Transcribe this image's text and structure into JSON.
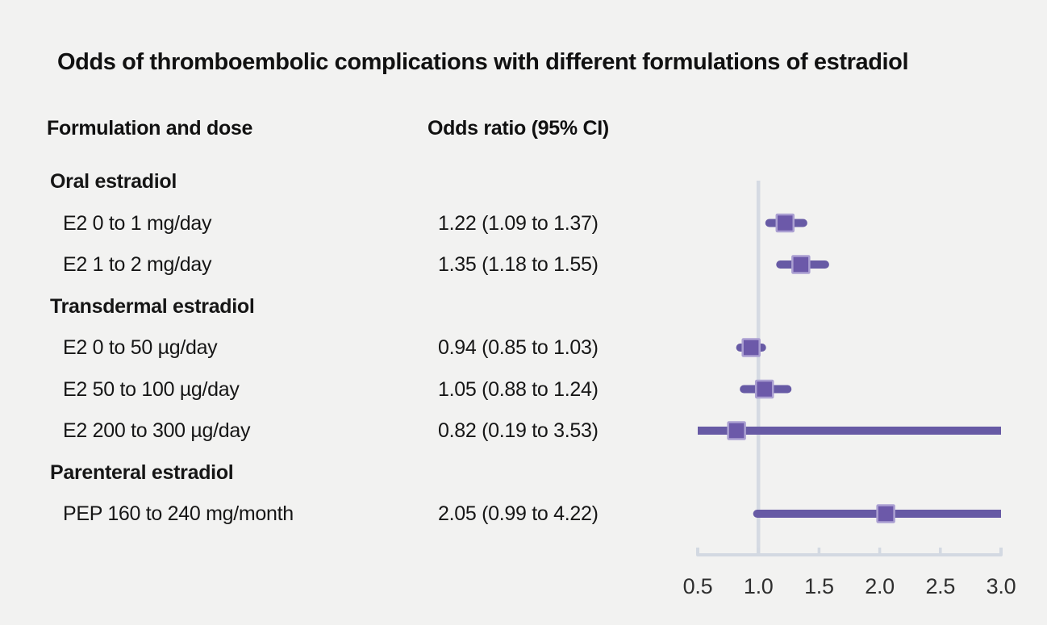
{
  "title": "Odds of thromboembolic complications with different formulations of estradiol",
  "columns": {
    "formulation": "Formulation and dose",
    "odds": "Odds ratio (95% CI)"
  },
  "chart_data": {
    "type": "forest",
    "title": "Odds of thromboembolic complications with different formulations of estradiol",
    "x_axis": {
      "label": "",
      "scale": "linear",
      "xlim": [
        0.5,
        3.0
      ],
      "tick_values": [
        0.5,
        1.0,
        1.5,
        2.0,
        2.5,
        3.0
      ],
      "tick_labels": [
        "0.5",
        "1.0",
        "1.5",
        "2.0",
        "2.5",
        "3.0"
      ],
      "reference_value": 1.0
    },
    "rows": [
      {
        "type": "group",
        "label": "Oral estradiol"
      },
      {
        "type": "item",
        "label": "E2 0 to 1 mg/day",
        "or_text": "1.22 (1.09 to 1.37)",
        "estimate": 1.22,
        "ci_low": 1.09,
        "ci_high": 1.37
      },
      {
        "type": "item",
        "label": "E2 1 to 2 mg/day",
        "or_text": "1.35 (1.18 to 1.55)",
        "estimate": 1.35,
        "ci_low": 1.18,
        "ci_high": 1.55
      },
      {
        "type": "group",
        "label": "Transdermal estradiol"
      },
      {
        "type": "item",
        "label": "E2 0 to 50 µg/day",
        "or_text": "0.94 (0.85 to 1.03)",
        "estimate": 0.94,
        "ci_low": 0.85,
        "ci_high": 1.03
      },
      {
        "type": "item",
        "label": "E2 50 to 100 µg/day",
        "or_text": "1.05 (0.88 to 1.24)",
        "estimate": 1.05,
        "ci_low": 0.88,
        "ci_high": 1.24
      },
      {
        "type": "item",
        "label": "E2 200 to 300 µg/day",
        "or_text": "0.82 (0.19 to 3.53)",
        "estimate": 0.82,
        "ci_low": 0.19,
        "ci_high": 3.53
      },
      {
        "type": "group",
        "label": "Parenteral estradiol"
      },
      {
        "type": "item",
        "label": "PEP 160 to 240 mg/month",
        "or_text": "2.05 (0.99 to 4.22)",
        "estimate": 2.05,
        "ci_low": 0.99,
        "ci_high": 4.22
      }
    ],
    "colors": {
      "ci_line": "#675aa5",
      "marker_fill": "#6c59a9",
      "marker_border": "#aba0d2",
      "axis_line": "#d3d9e2",
      "reference_line": "#d5dae3",
      "background": "#f2f2f1",
      "text": "#161616"
    },
    "legend": null,
    "grid": false
  }
}
